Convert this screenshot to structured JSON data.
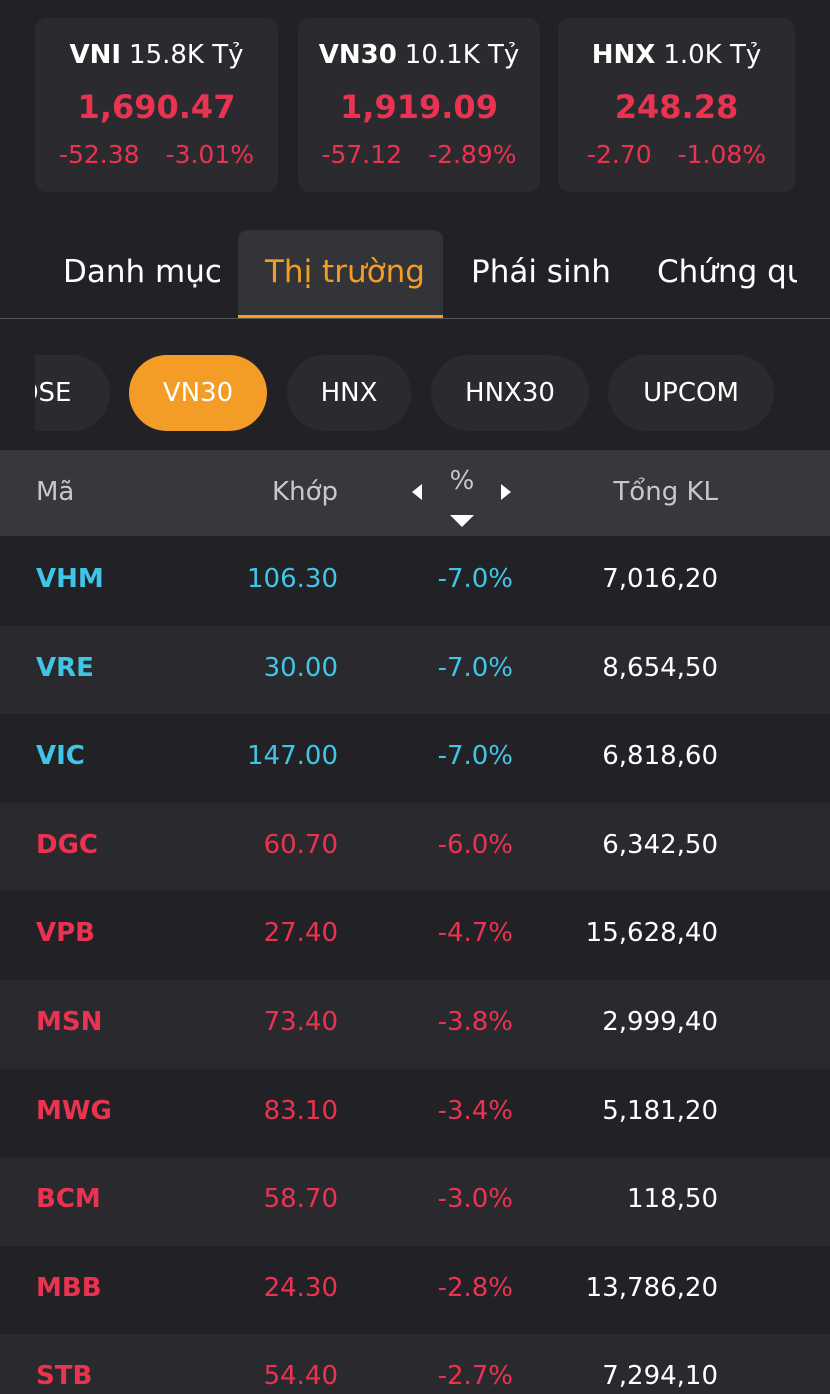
{
  "indices": [
    {
      "name": "VNI",
      "turnover": "15.8K Tỷ",
      "price": "1,690.47",
      "change": "-52.38",
      "percent": "-3.01%"
    },
    {
      "name": "VN30",
      "turnover": "10.1K Tỷ",
      "price": "1,919.09",
      "change": "-57.12",
      "percent": "-2.89%"
    },
    {
      "name": "HNX",
      "turnover": "1.0K Tỷ",
      "price": "248.28",
      "change": "-2.70",
      "percent": "-1.08%"
    }
  ],
  "tabs": [
    "Danh mục",
    "Thị trường",
    "Phái sinh",
    "Chứng quyền"
  ],
  "active_tab": 1,
  "exchanges": [
    "HOSE",
    "VN30",
    "HNX",
    "HNX30",
    "UPCOM"
  ],
  "active_exchange": 1,
  "table": {
    "headers": [
      "Mã",
      "Khớp",
      "%",
      "Tổng KL"
    ],
    "rows": [
      {
        "symbol": "VHM",
        "price": "106.30",
        "change": "-7.0%",
        "volume": "7,016,20",
        "color": "#3fc6e6"
      },
      {
        "symbol": "VRE",
        "price": "30.00",
        "change": "-7.0%",
        "volume": "8,654,50",
        "color": "#3fc6e6"
      },
      {
        "symbol": "VIC",
        "price": "147.00",
        "change": "-7.0%",
        "volume": "6,818,60",
        "color": "#3fc6e6"
      },
      {
        "symbol": "DGC",
        "price": "60.70",
        "change": "-6.0%",
        "volume": "6,342,50",
        "color": "#ea3350"
      },
      {
        "symbol": "VPB",
        "price": "27.40",
        "change": "-4.7%",
        "volume": "15,628,40",
        "color": "#ea3350"
      },
      {
        "symbol": "MSN",
        "price": "73.40",
        "change": "-3.8%",
        "volume": "2,999,40",
        "color": "#ea3350"
      },
      {
        "symbol": "MWG",
        "price": "83.10",
        "change": "-3.4%",
        "volume": "5,181,20",
        "color": "#ea3350"
      },
      {
        "symbol": "BCM",
        "price": "58.70",
        "change": "-3.0%",
        "volume": "118,50",
        "color": "#ea3350"
      },
      {
        "symbol": "MBB",
        "price": "24.30",
        "change": "-2.8%",
        "volume": "13,786,20",
        "color": "#ea3350"
      },
      {
        "symbol": "STB",
        "price": "54.40",
        "change": "-2.7%",
        "volume": "7,294,10",
        "color": "#ea3350"
      }
    ]
  }
}
